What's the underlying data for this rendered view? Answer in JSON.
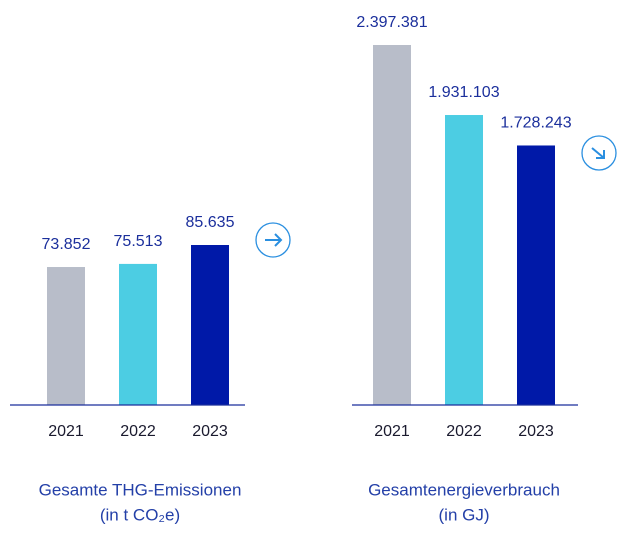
{
  "chart_data": [
    {
      "type": "bar",
      "title": "Gesamte THG-Emissionen",
      "subtitle": "(in t CO₂e)",
      "categories": [
        "2021",
        "2022",
        "2023"
      ],
      "values": [
        73852,
        75513,
        85635
      ],
      "value_labels": [
        "73.852",
        "75.513",
        "85.635"
      ],
      "colors": [
        "#b8bdc9",
        "#4ccde3",
        "#0019a8"
      ]
    },
    {
      "type": "bar",
      "title": "Gesamtenergieverbrauch",
      "subtitle": "(in GJ)",
      "categories": [
        "2021",
        "2022",
        "2023"
      ],
      "values": [
        2397381,
        1931103,
        1728243
      ],
      "value_labels": [
        "2.397.381",
        "1.931.103",
        "1.728.243"
      ],
      "colors": [
        "#b8bdc9",
        "#4ccde3",
        "#0019a8"
      ]
    }
  ]
}
